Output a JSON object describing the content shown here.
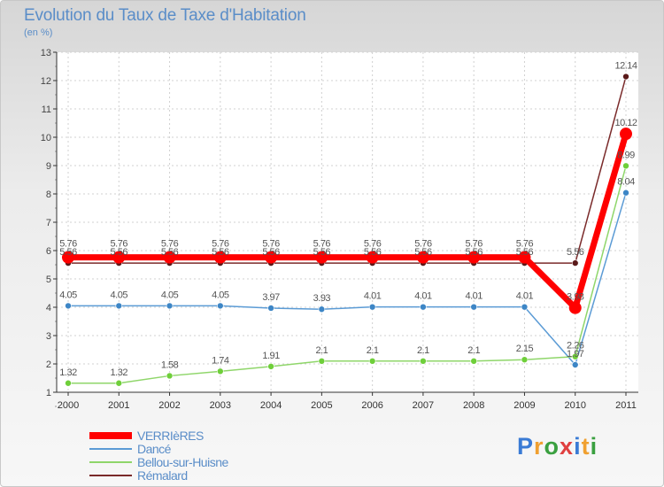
{
  "chart_data": {
    "type": "line",
    "title": "Evolution du Taux de Taxe d'Habitation",
    "subtitle": "(en %)",
    "xlabel": "",
    "ylabel": "",
    "categories": [
      "2000",
      "2001",
      "2002",
      "2003",
      "2004",
      "2005",
      "2006",
      "2007",
      "2008",
      "2009",
      "2010",
      "2011"
    ],
    "ylim": [
      1,
      13
    ],
    "yticks": [
      1,
      2,
      3,
      4,
      5,
      6,
      7,
      8,
      9,
      10,
      11,
      12,
      13
    ],
    "legend_position": "bottom-left",
    "series": [
      {
        "name": "Rémalard",
        "color": "#7a2a2a",
        "values": [
          5.56,
          5.56,
          5.56,
          5.56,
          5.56,
          5.56,
          5.56,
          5.56,
          5.56,
          5.56,
          5.56,
          12.14
        ],
        "labels": [
          "5.56",
          "5.56",
          "5.56",
          "5.56",
          "5.56",
          "5.56",
          "5.56",
          "5.56",
          "5.56",
          "5.56",
          "5.56",
          "12.14"
        ]
      },
      {
        "name": "Dancé",
        "color": "#5b9bd5",
        "values": [
          4.05,
          4.05,
          4.05,
          4.05,
          3.97,
          3.93,
          4.01,
          4.01,
          4.01,
          4.01,
          1.97,
          8.04
        ],
        "labels": [
          "4.05",
          "4.05",
          "4.05",
          "4.05",
          "3.97",
          "3.93",
          "4.01",
          "4.01",
          "4.01",
          "4.01",
          "1.97",
          "8.04"
        ]
      },
      {
        "name": "Bellou-sur-Huisne",
        "color": "#8fd66a",
        "values": [
          1.32,
          1.32,
          1.58,
          1.74,
          1.91,
          2.1,
          2.1,
          2.1,
          2.1,
          2.15,
          2.26,
          8.99
        ],
        "labels": [
          "1.32",
          "1.32",
          "1.58",
          "1.74",
          "1.91",
          "2.1",
          "2.1",
          "2.1",
          "2.1",
          "2.15",
          "2.26",
          "8.99"
        ]
      },
      {
        "name": "VERRIèRES",
        "color": "#ff0000",
        "values": [
          5.76,
          5.76,
          5.76,
          5.76,
          5.76,
          5.76,
          5.76,
          5.76,
          5.76,
          5.76,
          3.98,
          10.12
        ],
        "labels": [
          "5.76",
          "5.76",
          "5.76",
          "5.76",
          "5.76",
          "5.76",
          "5.76",
          "5.76",
          "5.76",
          "5.76",
          "3.98",
          "10.12"
        ]
      }
    ],
    "legend_order": [
      "VERRIèRES",
      "Dancé",
      "Bellou-sur-Huisne",
      "Rémalard"
    ]
  },
  "brand": {
    "letters": [
      "P",
      "r",
      "o",
      "x",
      "i",
      "t",
      "i"
    ],
    "colors": [
      "#3a7bd5",
      "#f0a030",
      "#3aa040",
      "#e04040",
      "#3a7bd5",
      "#f0a030",
      "#3aa040"
    ]
  }
}
